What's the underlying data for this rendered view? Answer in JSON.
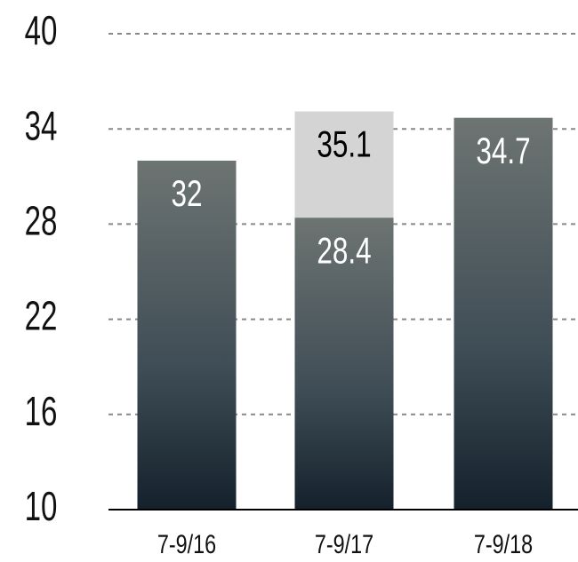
{
  "chart_data": {
    "type": "bar",
    "categories": [
      "7-9/16",
      "7-9/17",
      "7-9/18"
    ],
    "series": [
      {
        "color": "#d4d4d4",
        "values": [
          null,
          35.1,
          null
        ]
      },
      {
        "color": "#1a2733",
        "values": [
          32,
          28.4,
          34.7
        ]
      }
    ],
    "ylim": [
      10,
      40
    ],
    "yticks": [
      10,
      16,
      22,
      28,
      34,
      40
    ],
    "grid": true
  }
}
